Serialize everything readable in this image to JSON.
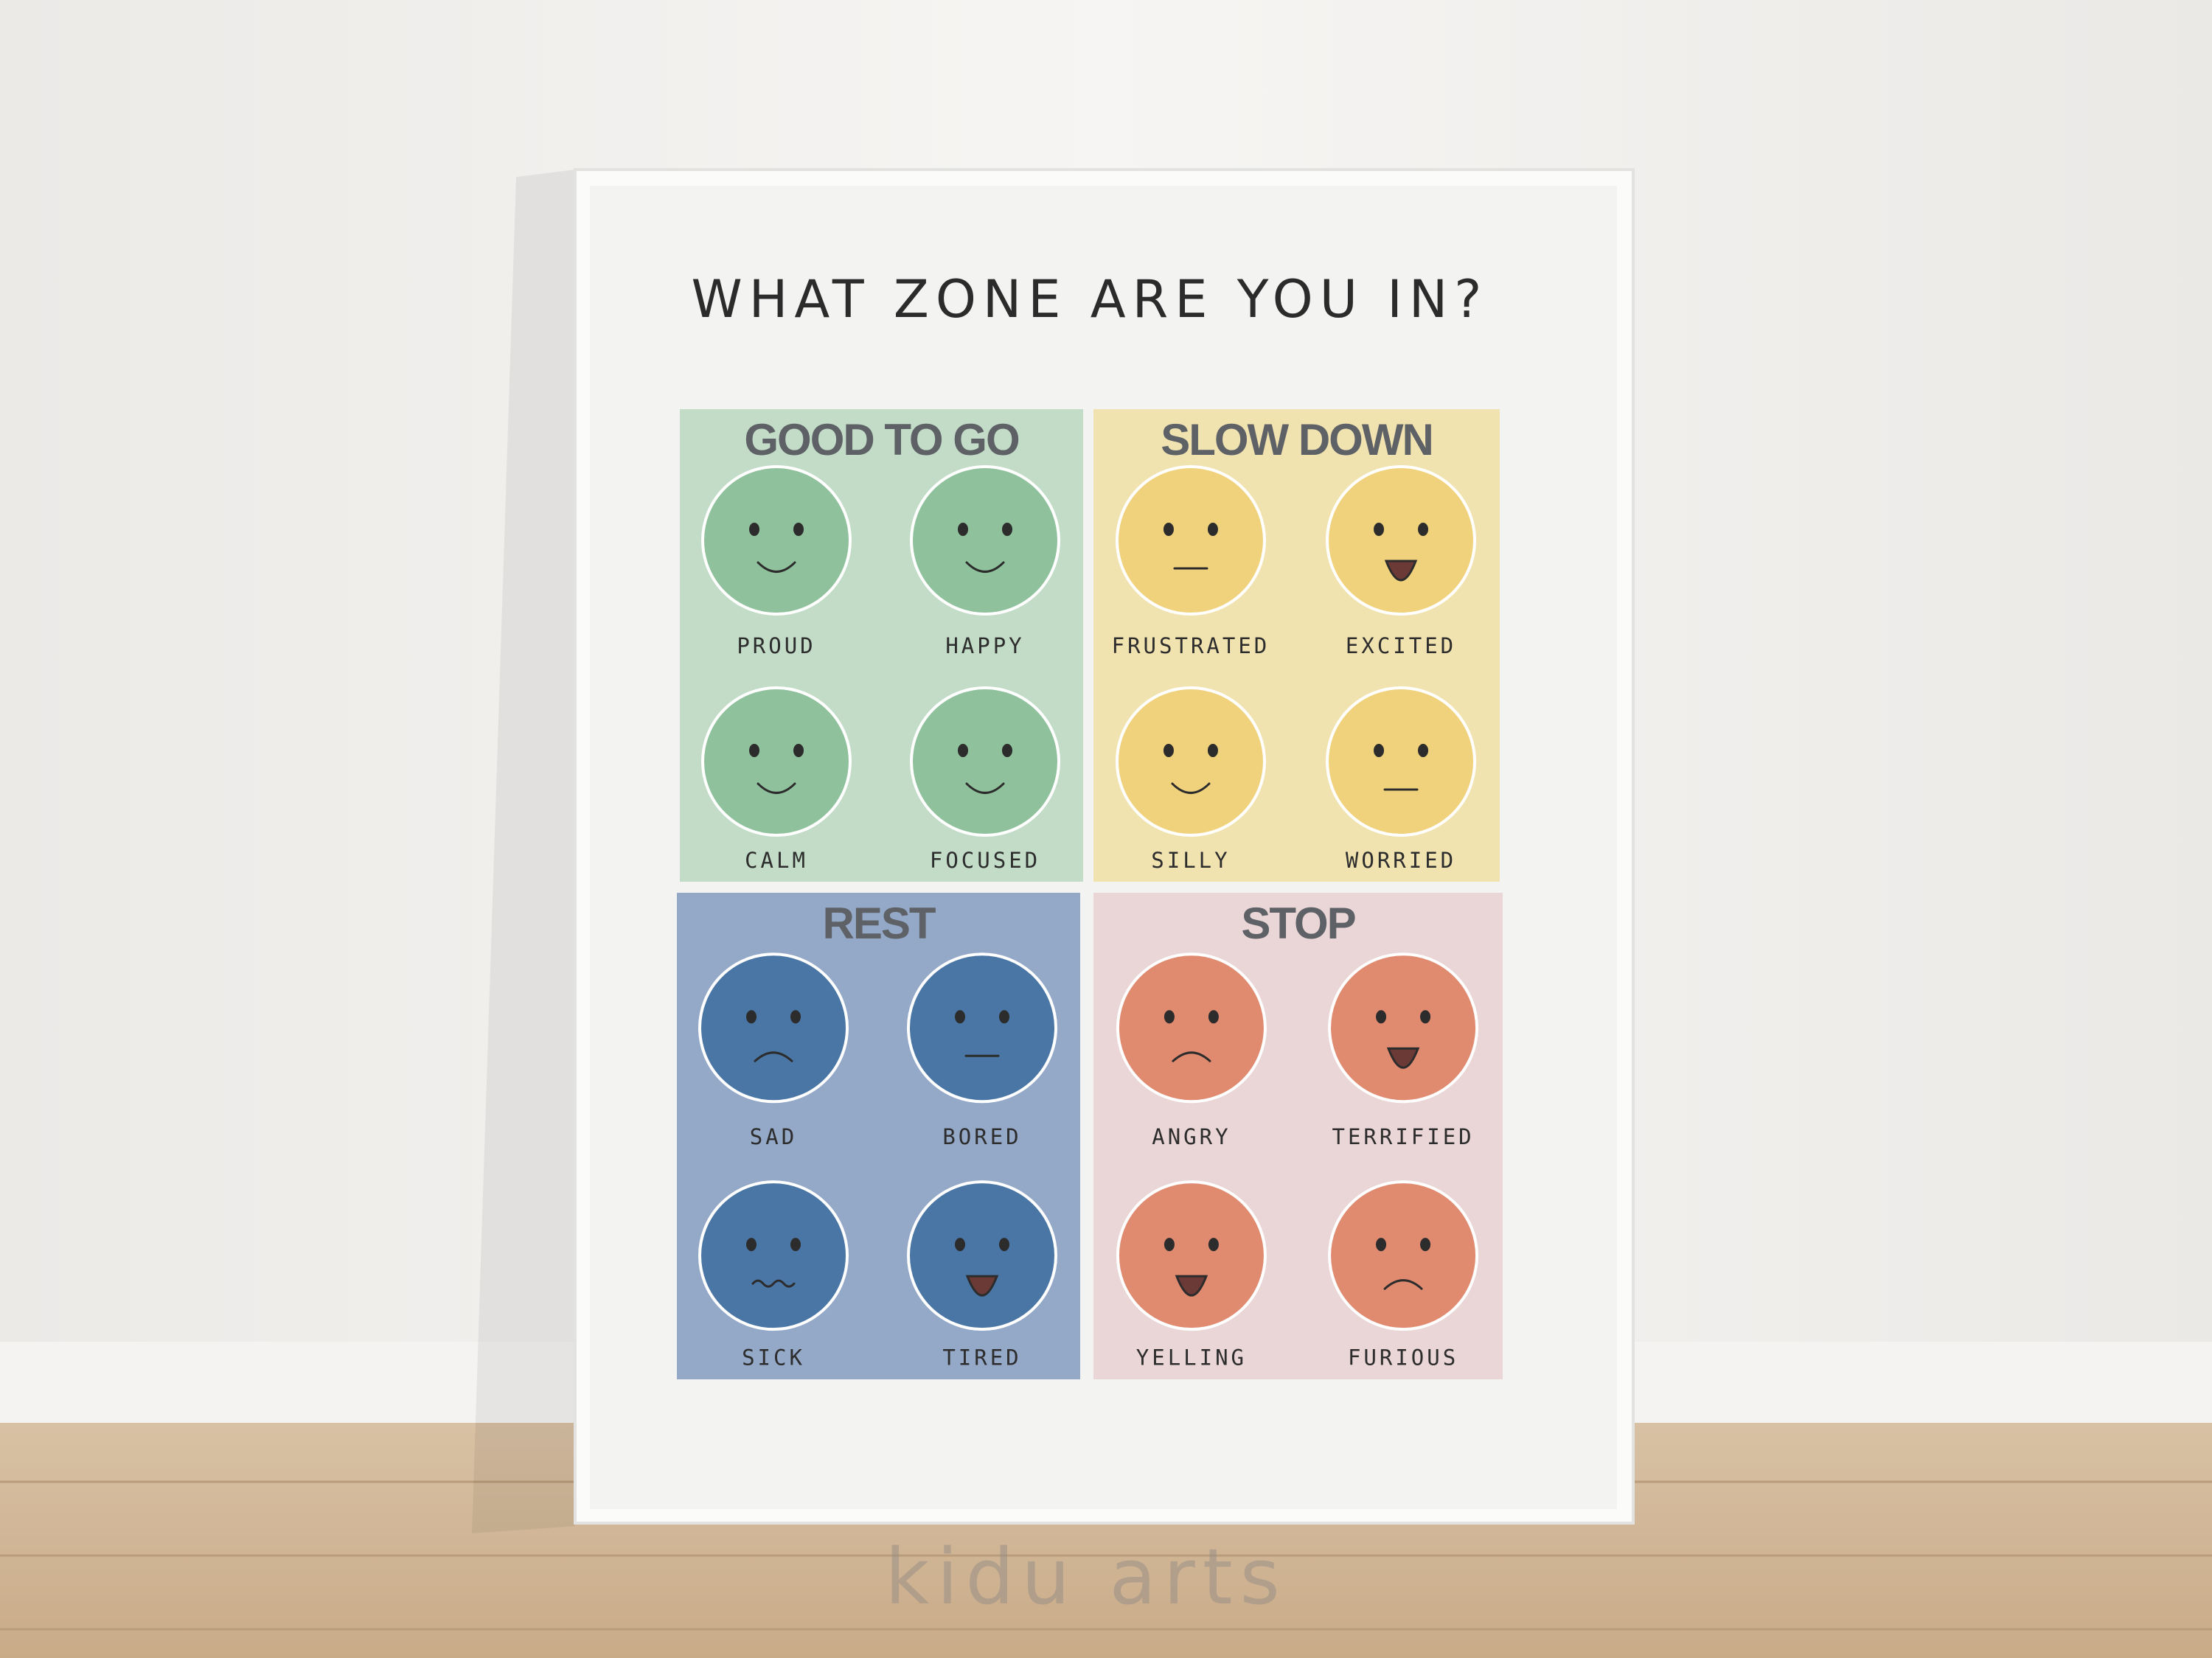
{
  "title": "WHAT ZONE ARE YOU IN?",
  "zones": [
    {
      "name": "GOOD TO GO",
      "emotions": [
        "PROUD",
        "HAPPY",
        "CALM",
        "FOCUSED"
      ]
    },
    {
      "name": "SLOW DOWN",
      "emotions": [
        "FRUSTRATED",
        "EXCITED",
        "SILLY",
        "WORRIED"
      ]
    },
    {
      "name": "REST",
      "emotions": [
        "SAD",
        "BORED",
        "SICK",
        "TIRED"
      ]
    },
    {
      "name": "STOP",
      "emotions": [
        "ANGRY",
        "TERRIFIED",
        "YELLING",
        "FURIOUS"
      ]
    }
  ],
  "watermark": "kidu arts"
}
